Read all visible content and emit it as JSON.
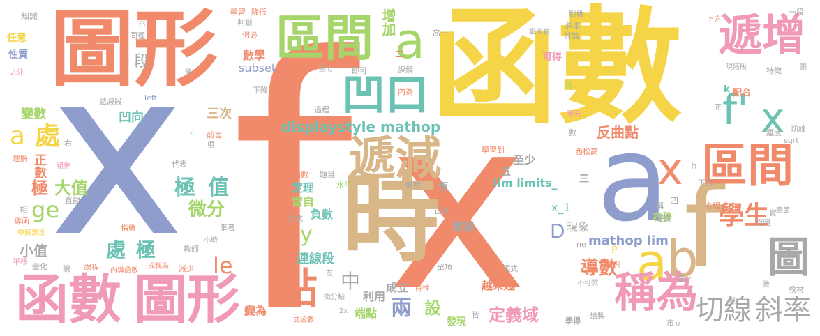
{
  "title": "",
  "colors": {
    "salmon": "#f08a6a",
    "yellow": "#f5d547",
    "periwinkle": "#8f9dcc",
    "green": "#a6d66b",
    "teal": "#6cc3b4",
    "tan": "#d9b688",
    "pink": "#f09ab8",
    "gray": "#a8a8a8"
  },
  "words": [
    {
      "text": "f",
      "color": "#f08a6a"
    },
    {
      "text": "x",
      "color": "#8f9dcc"
    },
    {
      "text": "x",
      "color": "#f08a6a"
    },
    {
      "text": "函數",
      "color": "#f5d547"
    },
    {
      "text": "圖形",
      "color": "#f08a6a"
    },
    {
      "text": "時",
      "color": "#d9b688"
    },
    {
      "text": "a",
      "color": "#8f9dcc"
    },
    {
      "text": "f",
      "color": "#d9b688"
    },
    {
      "text": "區間",
      "color": "#a6d66b"
    },
    {
      "text": "a",
      "color": "#a6d66b"
    },
    {
      "text": "遞增",
      "color": "#f09ab8"
    },
    {
      "text": "凹口",
      "color": "#6cc3b4"
    },
    {
      "text": "f'",
      "color": "#6cc3b4"
    },
    {
      "text": "x",
      "color": "#6cc3b4"
    },
    {
      "text": "遞減",
      "color": "#d9b688"
    },
    {
      "text": "x",
      "color": "#f08a6a"
    },
    {
      "text": "區間",
      "color": "#f08a6a"
    },
    {
      "text": "a",
      "color": "#f5d547"
    },
    {
      "text": "b",
      "color": "#d9b688"
    },
    {
      "text": "圖",
      "color": "#a8a8a8"
    },
    {
      "text": "函數",
      "color": "#f09ab8"
    },
    {
      "text": "圖形",
      "color": "#f09ab8"
    },
    {
      "text": "點",
      "color": "#f08a6a"
    },
    {
      "text": "稱為",
      "color": "#f09ab8"
    },
    {
      "text": "切線",
      "color": "#a8a8a8"
    },
    {
      "text": "斜率",
      "color": "#a8a8a8"
    },
    {
      "text": "學生",
      "color": "#f08a6a"
    },
    {
      "text": "a",
      "color": "#f5d547"
    },
    {
      "text": "處",
      "color": "#f5d547"
    },
    {
      "text": "ge",
      "color": "#a6d66b"
    },
    {
      "text": "le",
      "color": "#f08a6a"
    },
    {
      "text": "displaystyle mathop",
      "color": "#6cc3b4"
    },
    {
      "text": "極",
      "color": "#6cc3b4"
    },
    {
      "text": "值",
      "color": "#6cc3b4"
    },
    {
      "text": "微分",
      "color": "#a6d66b"
    },
    {
      "text": "處",
      "color": "#6cc3b4"
    },
    {
      "text": "極",
      "color": "#6cc3b4"
    },
    {
      "text": "極",
      "color": "#f08a6a"
    },
    {
      "text": "大值",
      "color": "#a6d66b"
    },
    {
      "text": "中",
      "color": "#a8a8a8"
    },
    {
      "text": "兩",
      "color": "#8f9dcc"
    },
    {
      "text": "定義域",
      "color": "#f09ab8"
    },
    {
      "text": "導數",
      "color": "#f08a6a"
    },
    {
      "text": "mathop lim",
      "color": "#8f9dcc"
    },
    {
      "text": "lim limits_",
      "color": "#6cc3b4"
    },
    {
      "text": "反曲點",
      "color": "#f08a6a"
    },
    {
      "text": "增加",
      "color": "#a6d66b"
    },
    {
      "text": "y",
      "color": "#a6d66b"
    },
    {
      "text": "D",
      "color": "#8f9dcc"
    },
    {
      "text": "三次",
      "color": "#d9b688"
    },
    {
      "text": "正數",
      "color": "#f08a6a"
    },
    {
      "text": "小值",
      "color": "#a8a8a8"
    },
    {
      "text": "變數",
      "color": "#a6d66b"
    },
    {
      "text": "凹向",
      "color": "#6cc3b4"
    },
    {
      "text": "段",
      "color": "#a8a8a8"
    },
    {
      "text": "數學",
      "color": "#f08a6a"
    },
    {
      "text": "subset",
      "color": "#8f9dcc"
    },
    {
      "text": "x_1",
      "color": "#6cc3b4"
    },
    {
      "text": "現象",
      "color": "#a8a8a8"
    },
    {
      "text": "設",
      "color": "#a6d66b"
    },
    {
      "text": "連線段",
      "color": "#6cc3b4"
    },
    {
      "text": "負數",
      "color": "#6cc3b4"
    },
    {
      "text": "定理",
      "color": "#6cc3b4"
    },
    {
      "text": "當自",
      "color": "#a6d66b"
    },
    {
      "text": "實根",
      "color": "#a8a8a8"
    },
    {
      "text": "越來越",
      "color": "#f08a6a"
    },
    {
      "text": "至少",
      "color": "#a8a8a8"
    },
    {
      "text": "利用",
      "color": "#a8a8a8"
    },
    {
      "text": "成立",
      "color": "#a8a8a8"
    },
    {
      "text": "端點",
      "color": "#a6d66b"
    },
    {
      "text": "變為",
      "color": "#f08a6a"
    },
    {
      "text": "右移",
      "color": "#a6d66b"
    },
    {
      "text": "學得",
      "color": "#a8a8a8"
    },
    {
      "text": "發現",
      "color": "#a6d66b"
    },
    {
      "text": "知識",
      "color": "#a8a8a8"
    },
    {
      "text": "任意",
      "color": "#f5d547"
    },
    {
      "text": "性質",
      "color": "#8f9dcc"
    },
    {
      "text": "之外",
      "color": "#f09ab8"
    },
    {
      "text": "學習",
      "color": "#f08a6a"
    },
    {
      "text": "降低",
      "color": "#f08a6a"
    },
    {
      "text": "同理",
      "color": "#a8a8a8"
    },
    {
      "text": "判斷",
      "color": "#a8a8a8"
    },
    {
      "text": "何必",
      "color": "#f08a6a"
    },
    {
      "text": "高一",
      "color": "#a8a8a8"
    },
    {
      "text": "設兩數",
      "color": "#a8a8a8"
    },
    {
      "text": "對數",
      "color": "#a8a8a8"
    },
    {
      "text": "上方",
      "color": "#f08a6a"
    },
    {
      "text": "一段",
      "color": "#a8a8a8"
    },
    {
      "text": "斜率",
      "color": "#a8a8a8"
    },
    {
      "text": "討論",
      "color": "#a8a8a8"
    },
    {
      "text": "可得",
      "color": "#f09ab8"
    },
    {
      "text": "課綱",
      "color": "#a8a8a8"
    },
    {
      "text": "即可",
      "color": "#a8a8a8"
    },
    {
      "text": "圖七",
      "color": "#a8a8a8"
    },
    {
      "text": "現階段",
      "color": "#a8a8a8"
    },
    {
      "text": "特徵",
      "color": "#a8a8a8"
    },
    {
      "text": "側",
      "color": "#a8a8a8"
    },
    {
      "text": "配合",
      "color": "#f08a6a"
    },
    {
      "text": "k",
      "color": "#6cc3b4"
    },
    {
      "text": "內為",
      "color": "#f08a6a"
    },
    {
      "text": "R",
      "color": "#a6d66b"
    },
    {
      "text": "下降",
      "color": "#a8a8a8"
    },
    {
      "text": "遞減段",
      "color": "#a8a8a8"
    },
    {
      "text": "left",
      "color": "#8f9dcc"
    },
    {
      "text": "過程",
      "color": "#a8a8a8"
    },
    {
      "text": "單元",
      "color": "#f09ab8"
    },
    {
      "text": "數",
      "color": "#a8a8a8"
    },
    {
      "text": "難度",
      "color": "#a8a8a8"
    },
    {
      "text": "切線",
      "color": "#a8a8a8"
    },
    {
      "text": "sqrt",
      "color": "#a8a8a8"
    },
    {
      "text": "西松高",
      "color": "#f08a6a"
    },
    {
      "text": "右",
      "color": "#a8a8a8"
    },
    {
      "text": "前言",
      "color": "#f08a6a"
    },
    {
      "text": "項",
      "color": "#a8a8a8"
    },
    {
      "text": "學習到",
      "color": "#f08a6a"
    },
    {
      "text": "時函數",
      "color": "#f08a6a"
    },
    {
      "text": "題目",
      "color": "#a8a8a8"
    },
    {
      "text": "水平",
      "color": "#a6d66b"
    },
    {
      "text": "值當",
      "color": "#a8a8a8"
    },
    {
      "text": "恆",
      "color": "#a8a8a8"
    },
    {
      "text": "五",
      "color": "#a8a8a8"
    },
    {
      "text": "三",
      "color": "#a8a8a8"
    },
    {
      "text": "下方",
      "color": "#a8a8a8"
    },
    {
      "text": "四",
      "color": "#a8a8a8"
    },
    {
      "text": "理解",
      "color": "#f08a6a"
    },
    {
      "text": "關係",
      "color": "#f09ab8"
    },
    {
      "text": "代表",
      "color": "#a8a8a8"
    },
    {
      "text": "稱",
      "color": "#a8a8a8"
    },
    {
      "text": "確實",
      "color": "#a8a8a8"
    },
    {
      "text": "方程式",
      "color": "#f08a6a"
    },
    {
      "text": "證明",
      "color": "#a8a8a8"
    },
    {
      "text": "實",
      "color": "#a8a8a8"
    },
    {
      "text": "章節",
      "color": "#a8a8a8"
    },
    {
      "text": "相",
      "color": "#a8a8a8"
    },
    {
      "text": "直觀",
      "color": "#a8a8a8"
    },
    {
      "text": "導函",
      "color": "#f08a6a"
    },
    {
      "text": "中蘇惠玉",
      "color": "#f5d547"
    },
    {
      "text": "指數",
      "color": "#f08a6a"
    },
    {
      "text": "方式",
      "color": "#a8a8a8"
    },
    {
      "text": "正時",
      "color": "#a8a8a8"
    },
    {
      "text": "筆者",
      "color": "#a8a8a8"
    },
    {
      "text": "平移",
      "color": "#f09ab8"
    },
    {
      "text": "變化",
      "color": "#a8a8a8"
    },
    {
      "text": "說",
      "color": "#a8a8a8"
    },
    {
      "text": "課程",
      "color": "#f08a6a"
    },
    {
      "text": "內導函數",
      "color": "#f08a6a"
    },
    {
      "text": "成稱為",
      "color": "#f08a6a"
    },
    {
      "text": "減少",
      "color": "#f08a6a"
    },
    {
      "text": "小時",
      "color": "#a8a8a8"
    },
    {
      "text": "教師",
      "color": "#a8a8a8"
    },
    {
      "text": "解題",
      "color": "#f08a6a"
    },
    {
      "text": "左",
      "color": "#a8a8a8"
    },
    {
      "text": "單項",
      "color": "#a8a8a8"
    },
    {
      "text": "項式",
      "color": "#a8a8a8"
    },
    {
      "text": "提升",
      "color": "#f08a6a"
    },
    {
      "text": "臺北",
      "color": "#a8a8a8"
    },
    {
      "text": "不可微",
      "color": "#a8a8a8"
    },
    {
      "text": "教材",
      "color": "#a8a8a8"
    },
    {
      "text": "特性",
      "color": "#f08a6a"
    },
    {
      "text": "微分點",
      "color": "#a8a8a8"
    },
    {
      "text": "2x",
      "color": "#a8a8a8"
    },
    {
      "text": "式函數",
      "color": "#f08a6a"
    },
    {
      "text": "皆",
      "color": "#a8a8a8"
    },
    {
      "text": "繪製",
      "color": "#a8a8a8"
    },
    {
      "text": "市立",
      "color": "#a8a8a8"
    },
    {
      "text": "微",
      "color": "#a8a8a8"
    },
    {
      "text": "條",
      "color": "#a8a8a8"
    },
    {
      "text": "ne",
      "color": "#a8a8a8"
    },
    {
      "text": "P",
      "color": "#f5d547"
    },
    {
      "text": "h",
      "color": "#a8a8a8"
    },
    {
      "text": "六",
      "color": "#a8a8a8"
    },
    {
      "text": "二",
      "color": "#f08a6a"
    },
    {
      "text": "正",
      "color": "#a8a8a8"
    },
    {
      "text": "f",
      "color": "#a8a8a8"
    },
    {
      "text": "I",
      "color": "#a8a8a8"
    },
    {
      "text": "裡",
      "color": "#a8a8a8"
    }
  ]
}
